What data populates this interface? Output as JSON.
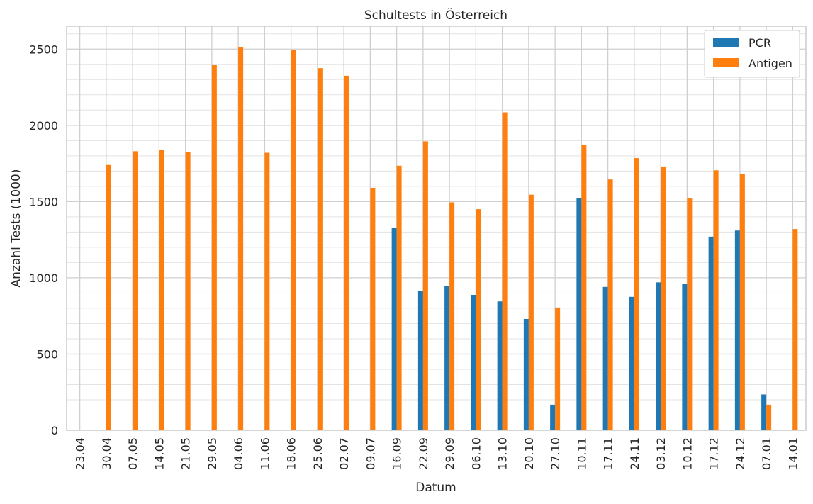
{
  "chart_data": {
    "type": "bar",
    "title": "Schultests in Österreich",
    "xlabel": "Datum",
    "ylabel": "Anzahl Tests (1000)",
    "ylim": [
      0,
      2650
    ],
    "yticks": [
      0,
      500,
      1000,
      1500,
      2000,
      2500
    ],
    "grid": true,
    "legend_position": "top-right",
    "categories": [
      "23.04",
      "30.04",
      "07.05",
      "14.05",
      "21.05",
      "29.05",
      "04.06",
      "11.06",
      "18.06",
      "25.06",
      "02.07",
      "09.07",
      "16.09",
      "22.09",
      "29.09",
      "06.10",
      "13.10",
      "20.10",
      "27.10",
      "10.11",
      "17.11",
      "24.11",
      "03.12",
      "10.12",
      "17.12",
      "24.12",
      "07.01",
      "14.01"
    ],
    "series": [
      {
        "name": "PCR",
        "color": "#1f77b4",
        "values": [
          0,
          0,
          0,
          0,
          0,
          0,
          0,
          0,
          0,
          0,
          0,
          0,
          1325,
          915,
          945,
          888,
          845,
          730,
          168,
          1525,
          940,
          875,
          970,
          960,
          1270,
          1310,
          235,
          0
        ]
      },
      {
        "name": "Antigen",
        "color": "#ff7f0e",
        "values": [
          0,
          1740,
          1830,
          1840,
          1825,
          2395,
          2515,
          1820,
          2495,
          2375,
          2325,
          1590,
          1735,
          1895,
          1495,
          1450,
          2085,
          1545,
          805,
          1870,
          1645,
          1785,
          1730,
          1520,
          1705,
          1680,
          168,
          1320
        ]
      }
    ]
  }
}
